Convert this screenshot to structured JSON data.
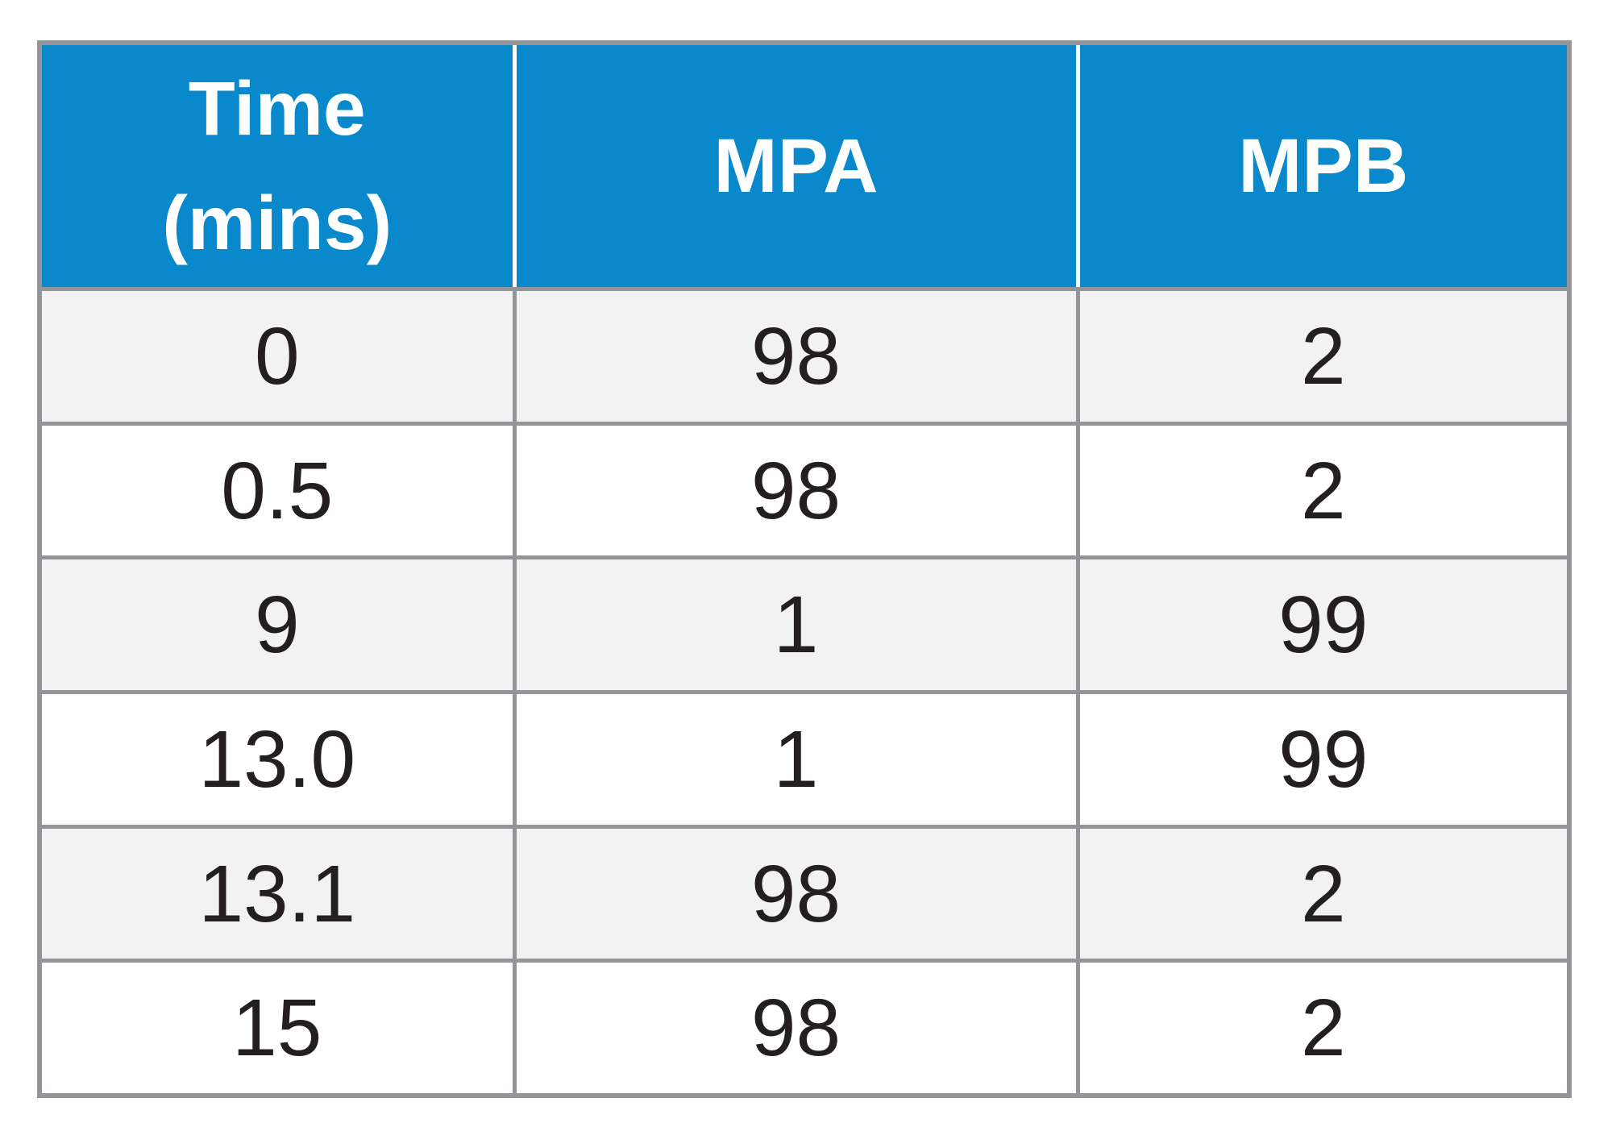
{
  "chart_data": {
    "type": "table",
    "title": "",
    "columns": [
      "Time (mins)",
      "MPA",
      "MPB"
    ],
    "rows": [
      [
        "0",
        "98",
        "2"
      ],
      [
        "0.5",
        "98",
        "2"
      ],
      [
        "9",
        "1",
        "99"
      ],
      [
        "13.0",
        "1",
        "99"
      ],
      [
        "13.1",
        "98",
        "2"
      ],
      [
        "15",
        "98",
        "2"
      ]
    ]
  },
  "colors": {
    "header_bg": "#0989cb",
    "header_text": "#ffffff",
    "header_divider": "#ffffff",
    "border": "#939598",
    "row_alt_bg": "#f2f2f3",
    "row_bg": "#ffffff",
    "cell_text": "#231f20",
    "page_bg": "#ffffff"
  }
}
